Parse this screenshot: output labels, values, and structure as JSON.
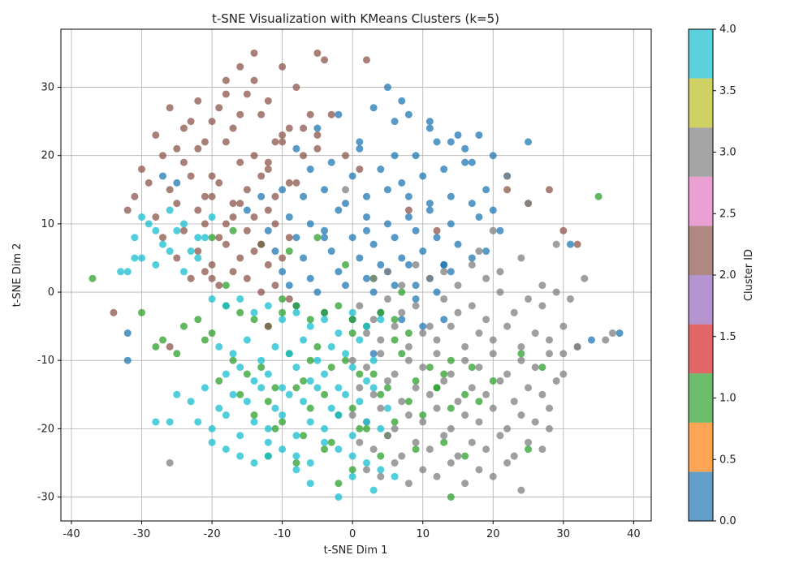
{
  "chart_data": {
    "type": "scatter",
    "title": "t-SNE Visualization with KMeans Clusters (k=5)",
    "xlabel": "t-SNE Dim 1",
    "ylabel": "t-SNE Dim 2",
    "xlim": [
      -41.5,
      42.5
    ],
    "ylim": [
      -33.5,
      38.5
    ],
    "xticks": [
      -40,
      -30,
      -20,
      -10,
      0,
      10,
      20,
      30,
      40
    ],
    "yticks": [
      -30,
      -20,
      -10,
      0,
      10,
      20,
      30
    ],
    "grid": true,
    "colorbar": {
      "label": "Cluster ID",
      "range": [
        0.0,
        4.0
      ],
      "ticks": [
        "0.0",
        "0.5",
        "1.0",
        "1.5",
        "2.0",
        "2.5",
        "3.0",
        "3.5",
        "4.0"
      ],
      "colors": [
        "#1f77b4",
        "#ff7f0e",
        "#2ca02c",
        "#d62728",
        "#9467bd",
        "#8c564b",
        "#e377c2",
        "#7f7f7f",
        "#bcbd22",
        "#17becf"
      ]
    },
    "cluster_colors": {
      "0": "#1f77b4",
      "1": "#2ca02c",
      "2": "#8c564b",
      "3": "#7f7f7f",
      "4": "#17becf"
    },
    "series": [
      {
        "cluster": 0,
        "x": [
          -8,
          -5,
          -2,
          1,
          3,
          6,
          9,
          12,
          -6,
          -3,
          0,
          4,
          7,
          10,
          13,
          16,
          -10,
          -7,
          -4,
          -1,
          2,
          5,
          8,
          11,
          14,
          17,
          20,
          -9,
          -6,
          -2,
          2,
          5,
          8,
          11,
          14,
          18,
          21,
          -12,
          -8,
          -4,
          0,
          3,
          6,
          9,
          12,
          15,
          19,
          -11,
          -7,
          -3,
          1,
          4,
          7,
          10,
          13,
          17,
          -10,
          -6,
          -2,
          2,
          5,
          8,
          11,
          14,
          -9,
          -5,
          -1,
          3,
          6,
          9,
          12,
          -8,
          -4,
          0,
          4,
          7,
          10,
          13,
          5,
          8,
          11,
          14,
          16,
          18,
          20,
          1,
          7,
          -13,
          -15,
          -27,
          -25,
          -32,
          -32,
          31,
          34,
          38,
          15,
          17,
          22,
          25,
          19,
          6,
          2,
          -4,
          11,
          13,
          9,
          3
        ],
        "y": [
          21,
          24,
          26,
          22,
          27,
          25,
          20,
          22,
          18,
          19,
          17,
          18,
          16,
          17,
          18,
          19,
          15,
          14,
          15,
          13,
          14,
          15,
          14,
          13,
          14,
          13,
          12,
          11,
          10,
          12,
          11,
          10,
          11,
          12,
          10,
          11,
          9,
          9,
          8,
          9,
          8,
          7,
          8,
          9,
          8,
          7,
          6,
          6,
          5,
          6,
          5,
          4,
          5,
          6,
          4,
          5,
          3,
          2,
          3,
          2,
          3,
          4,
          2,
          3,
          1,
          0,
          1,
          0,
          1,
          -1,
          0,
          -2,
          -3,
          -4,
          -3,
          -4,
          -5,
          -4,
          30,
          26,
          24,
          22,
          21,
          23,
          20,
          21,
          28,
          14,
          12,
          17,
          16,
          -6,
          -10,
          7,
          -7,
          -6,
          23,
          19,
          17,
          22,
          15,
          20,
          9,
          8,
          25,
          4,
          1,
          -9
        ],
        "counts": [
          0
        ]
      },
      {
        "cluster": 1,
        "x": [
          -37,
          -30,
          -27,
          -24,
          -22,
          -20,
          -18,
          -16,
          -14,
          -12,
          -10,
          -8,
          -6,
          -4,
          -2,
          0,
          2,
          4,
          6,
          8,
          -28,
          -25,
          -21,
          -17,
          -13,
          -9,
          -5,
          -1,
          3,
          7,
          11,
          14,
          -19,
          -15,
          -11,
          -7,
          -3,
          1,
          5,
          9,
          13,
          17,
          -16,
          -12,
          -8,
          -4,
          0,
          4,
          8,
          12,
          16,
          -14,
          -10,
          -6,
          -2,
          2,
          6,
          10,
          14,
          18,
          -20,
          -17,
          -13,
          -9,
          -5,
          -1,
          3,
          7,
          -11,
          -7,
          -3,
          1,
          5,
          9,
          13,
          16,
          -12,
          -8,
          -4,
          0,
          4,
          25,
          35,
          14,
          27,
          -2,
          -10,
          -18,
          -6,
          0,
          6,
          12,
          20,
          24
        ],
        "y": [
          2,
          -3,
          -7,
          -5,
          -4,
          -6,
          -2,
          -3,
          -4,
          -5,
          -3,
          -2,
          -4,
          -3,
          -2,
          -4,
          -5,
          -3,
          -4,
          -6,
          -8,
          -9,
          -7,
          -10,
          -11,
          -9,
          -8,
          -10,
          -12,
          -9,
          -11,
          -10,
          -13,
          -12,
          -14,
          -13,
          -11,
          -12,
          -14,
          -13,
          -12,
          -11,
          -15,
          -16,
          -14,
          -15,
          -17,
          -15,
          -16,
          -14,
          -15,
          -18,
          -19,
          -17,
          -18,
          -20,
          -19,
          -18,
          -17,
          -16,
          8,
          9,
          7,
          6,
          8,
          4,
          2,
          0,
          -20,
          -21,
          -22,
          -20,
          -21,
          -23,
          -22,
          -24,
          -24,
          -25,
          -23,
          -26,
          -24,
          -23,
          14,
          -30,
          -11,
          -28,
          -1,
          1,
          -10,
          -6,
          -7,
          -14,
          -13,
          -9
        ],
        "counts": [
          0
        ]
      },
      {
        "cluster": 2,
        "x": [
          -26,
          -24,
          -22,
          -20,
          -18,
          -16,
          -14,
          -12,
          -10,
          -8,
          -6,
          -4,
          -28,
          -25,
          -23,
          -21,
          -19,
          -17,
          -15,
          -13,
          -11,
          -9,
          -7,
          -5,
          -30,
          -27,
          -24,
          -22,
          -20,
          -18,
          -16,
          -14,
          -12,
          -10,
          -8,
          -31,
          -29,
          -26,
          -23,
          -21,
          -19,
          -17,
          -15,
          -13,
          -11,
          -9,
          -32,
          -28,
          -25,
          -22,
          -20,
          -18,
          -16,
          -14,
          -12,
          -27,
          -24,
          -21,
          -19,
          -17,
          -15,
          -13,
          -11,
          -9,
          -25,
          -22,
          -20,
          -18,
          -16,
          -14,
          -12,
          -10,
          -23,
          -21,
          -19,
          -17,
          -15,
          -13,
          -11,
          -9,
          -7,
          -5,
          -3,
          -1,
          1,
          -34,
          -26,
          -20,
          -12,
          -5,
          2,
          8,
          12,
          22,
          25,
          28,
          30,
          32,
          -18,
          -14,
          -16,
          -10,
          -12
        ],
        "y": [
          27,
          24,
          28,
          25,
          29,
          26,
          31,
          28,
          33,
          30,
          26,
          34,
          23,
          21,
          25,
          22,
          27,
          24,
          29,
          26,
          22,
          24,
          20,
          23,
          18,
          20,
          19,
          21,
          17,
          22,
          19,
          20,
          18,
          23,
          16,
          14,
          16,
          15,
          17,
          14,
          16,
          13,
          15,
          17,
          14,
          16,
          12,
          11,
          13,
          12,
          14,
          10,
          13,
          11,
          12,
          8,
          9,
          10,
          8,
          11,
          9,
          7,
          10,
          8,
          5,
          6,
          4,
          7,
          5,
          6,
          4,
          5,
          2,
          3,
          1,
          3,
          2,
          0,
          1,
          -1,
          24,
          21,
          26,
          20,
          18,
          -3,
          -8,
          2,
          -5,
          35,
          34,
          12,
          9,
          15,
          13,
          15,
          9,
          7,
          31,
          35,
          33,
          22,
          19
        ],
        "counts": [
          0
        ]
      },
      {
        "cluster": 3,
        "x": [
          1,
          3,
          5,
          7,
          9,
          11,
          13,
          15,
          17,
          19,
          21,
          23,
          25,
          27,
          29,
          31,
          2,
          4,
          6,
          8,
          10,
          12,
          14,
          16,
          18,
          20,
          22,
          24,
          26,
          28,
          30,
          32,
          0,
          2,
          4,
          6,
          8,
          10,
          12,
          14,
          16,
          18,
          20,
          22,
          24,
          26,
          28,
          30,
          1,
          3,
          5,
          7,
          9,
          11,
          13,
          15,
          17,
          19,
          21,
          23,
          25,
          27,
          29,
          0,
          2,
          4,
          6,
          8,
          10,
          12,
          14,
          16,
          18,
          20,
          22,
          24,
          26,
          28,
          1,
          3,
          5,
          7,
          9,
          11,
          13,
          15,
          17,
          19,
          21,
          23,
          25,
          27,
          2,
          4,
          6,
          8,
          10,
          12,
          14,
          16,
          18,
          20,
          22,
          3,
          5,
          7,
          9,
          11,
          13,
          15,
          17,
          19,
          21,
          20,
          24,
          29,
          33,
          36,
          37,
          25,
          22,
          -26,
          -1,
          18,
          27,
          30,
          28,
          24,
          32
        ],
        "y": [
          -2,
          -4,
          -1,
          -3,
          -2,
          -5,
          -1,
          -3,
          -2,
          -4,
          0,
          -3,
          -1,
          -2,
          0,
          -1,
          -6,
          -7,
          -5,
          -8,
          -6,
          -7,
          -5,
          -8,
          -6,
          -7,
          -5,
          -8,
          -6,
          -7,
          -5,
          -8,
          -10,
          -11,
          -9,
          -12,
          -10,
          -11,
          -9,
          -12,
          -10,
          -11,
          -9,
          -12,
          -10,
          -11,
          -9,
          -12,
          -14,
          -15,
          -13,
          -16,
          -14,
          -15,
          -13,
          -16,
          -14,
          -15,
          -13,
          -16,
          -14,
          -15,
          -13,
          -18,
          -19,
          -17,
          -20,
          -18,
          -19,
          -17,
          -20,
          -18,
          -19,
          -17,
          -20,
          -18,
          -19,
          -17,
          -22,
          -23,
          -21,
          -24,
          -22,
          -23,
          -21,
          -24,
          -22,
          -23,
          -21,
          -24,
          -22,
          -23,
          -26,
          -27,
          -25,
          -28,
          -26,
          -27,
          -25,
          -28,
          -26,
          -27,
          -25,
          2,
          3,
          1,
          4,
          2,
          3,
          1,
          4,
          2,
          3,
          9,
          5,
          7,
          2,
          -7,
          -6,
          13,
          17,
          -25,
          15,
          6,
          1,
          -9,
          -20,
          -29,
          -8
        ],
        "counts": [
          0
        ]
      },
      {
        "cluster": 4,
        "x": [
          -32,
          -30,
          -28,
          -26,
          -24,
          -22,
          -20,
          -18,
          -16,
          -14,
          -12,
          -10,
          -8,
          -6,
          -4,
          -2,
          0,
          2,
          4,
          -31,
          -29,
          -27,
          -25,
          -23,
          -21,
          -19,
          -17,
          -15,
          -13,
          -11,
          -9,
          -7,
          -5,
          -3,
          -1,
          1,
          3,
          -30,
          -28,
          -26,
          -24,
          -22,
          -20,
          -18,
          -16,
          -14,
          -12,
          -10,
          -8,
          -6,
          -4,
          -2,
          0,
          2,
          -25,
          -23,
          -21,
          -19,
          -17,
          -15,
          -13,
          -11,
          -9,
          -7,
          -5,
          -3,
          -1,
          1,
          3,
          5,
          -22,
          -20,
          -18,
          -16,
          -14,
          -12,
          -10,
          -8,
          -6,
          -4,
          -2,
          0,
          2,
          4,
          -20,
          -18,
          -16,
          -14,
          -12,
          -10,
          -8,
          -6,
          -4,
          -2,
          0,
          2,
          4,
          6,
          -12,
          -8,
          -6,
          -2,
          0,
          3,
          -26,
          -28,
          -31,
          -33
        ],
        "y": [
          3,
          5,
          4,
          6,
          3,
          5,
          -1,
          -2,
          -1,
          -3,
          -2,
          -4,
          -3,
          -5,
          -4,
          -6,
          -3,
          -5,
          -4,
          8,
          10,
          7,
          9,
          6,
          8,
          -8,
          -9,
          -7,
          -10,
          -8,
          -9,
          -7,
          -10,
          -8,
          -9,
          -7,
          -10,
          11,
          9,
          12,
          10,
          8,
          11,
          -12,
          -11,
          -13,
          -12,
          -14,
          -11,
          -13,
          -12,
          -14,
          -11,
          -13,
          -15,
          -16,
          -14,
          -17,
          -15,
          -16,
          -14,
          -17,
          -15,
          -16,
          -14,
          -17,
          -15,
          -16,
          -14,
          -17,
          -19,
          -20,
          -18,
          -21,
          -19,
          -20,
          -18,
          -21,
          -19,
          -20,
          -18,
          -21,
          -19,
          -20,
          -22,
          -23,
          -24,
          -25,
          -22,
          -23,
          -24,
          -25,
          -22,
          -23,
          -24,
          -25,
          -26,
          -27,
          -24,
          -26,
          -28,
          -30,
          -27,
          -29,
          -19,
          -19,
          5,
          3
        ],
        "counts": [
          0
        ]
      }
    ]
  }
}
